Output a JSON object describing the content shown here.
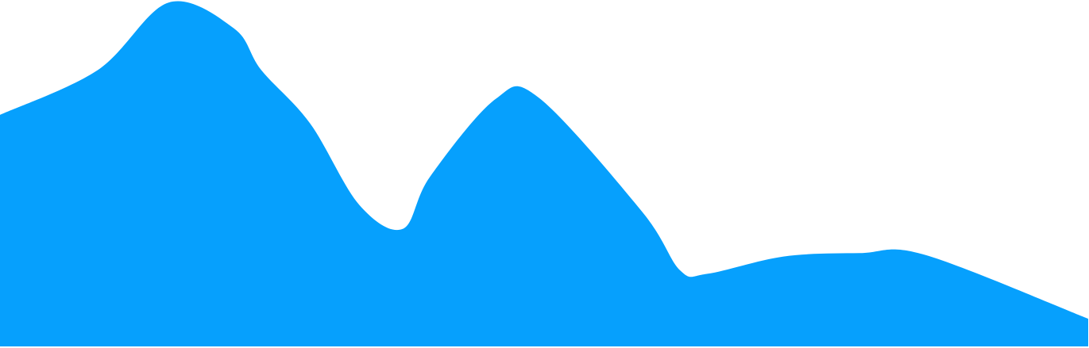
{
  "chart_data": {
    "type": "area",
    "title": "",
    "xlabel": "",
    "ylabel": "",
    "grid": false,
    "legend": "none",
    "x": [
      0,
      0.09,
      0.155,
      0.215,
      0.24,
      0.285,
      0.33,
      0.37,
      0.395,
      0.455,
      0.495,
      0.59,
      0.625,
      0.65,
      0.72,
      0.79,
      0.85,
      1.0
    ],
    "values": [
      0.67,
      0.8,
      0.995,
      0.92,
      0.8,
      0.645,
      0.41,
      0.34,
      0.49,
      0.715,
      0.72,
      0.39,
      0.22,
      0.21,
      0.26,
      0.27,
      0.265,
      0.08
    ],
    "ylim": [
      0,
      1
    ],
    "xlim": [
      0,
      1
    ],
    "colors": {
      "fill": "#06A0FD",
      "background": "#FFFFFF"
    }
  }
}
